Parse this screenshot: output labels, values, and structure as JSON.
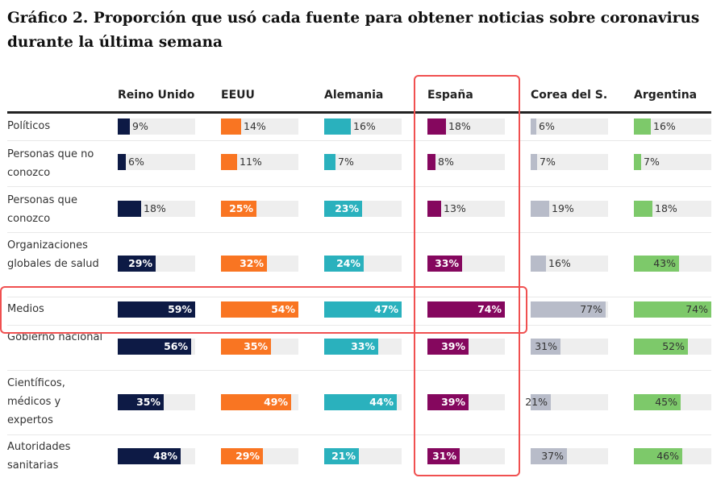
{
  "chart_data": {
    "type": "bar",
    "title": "Gráfico 2. Proporción que usó cada fuente para obtener noticias sobre coronavirus durante la última semana",
    "categories": [
      "Políticos",
      "Personas que no conozco",
      "Personas que conozco",
      "Organizaciones globales de salud",
      "Medios",
      "Gobierno nacional",
      "Científicos, médicos y expertos",
      "Autoridades sanitarias"
    ],
    "series": [
      {
        "name": "Reino Unido",
        "color": "#0d1a45",
        "values": [
          9,
          6,
          18,
          29,
          59,
          56,
          35,
          48
        ]
      },
      {
        "name": "EEUU",
        "color": "#f97522",
        "values": [
          14,
          11,
          25,
          32,
          54,
          35,
          49,
          29
        ]
      },
      {
        "name": "Alemania",
        "color": "#2ab1bd",
        "values": [
          16,
          7,
          23,
          24,
          47,
          33,
          44,
          21
        ]
      },
      {
        "name": "España",
        "color": "#85075e",
        "values": [
          18,
          8,
          13,
          33,
          74,
          39,
          39,
          31
        ]
      },
      {
        "name": "Corea del S.",
        "color": "#b8bcc9",
        "values": [
          6,
          7,
          19,
          16,
          77,
          31,
          21,
          37
        ]
      },
      {
        "name": "Argentina",
        "color": "#7dc96a",
        "values": [
          16,
          7,
          18,
          43,
          74,
          52,
          45,
          46
        ]
      }
    ],
    "unit": "%",
    "highlight": {
      "column": "España",
      "row": "Medios",
      "color": "#f05050"
    }
  }
}
